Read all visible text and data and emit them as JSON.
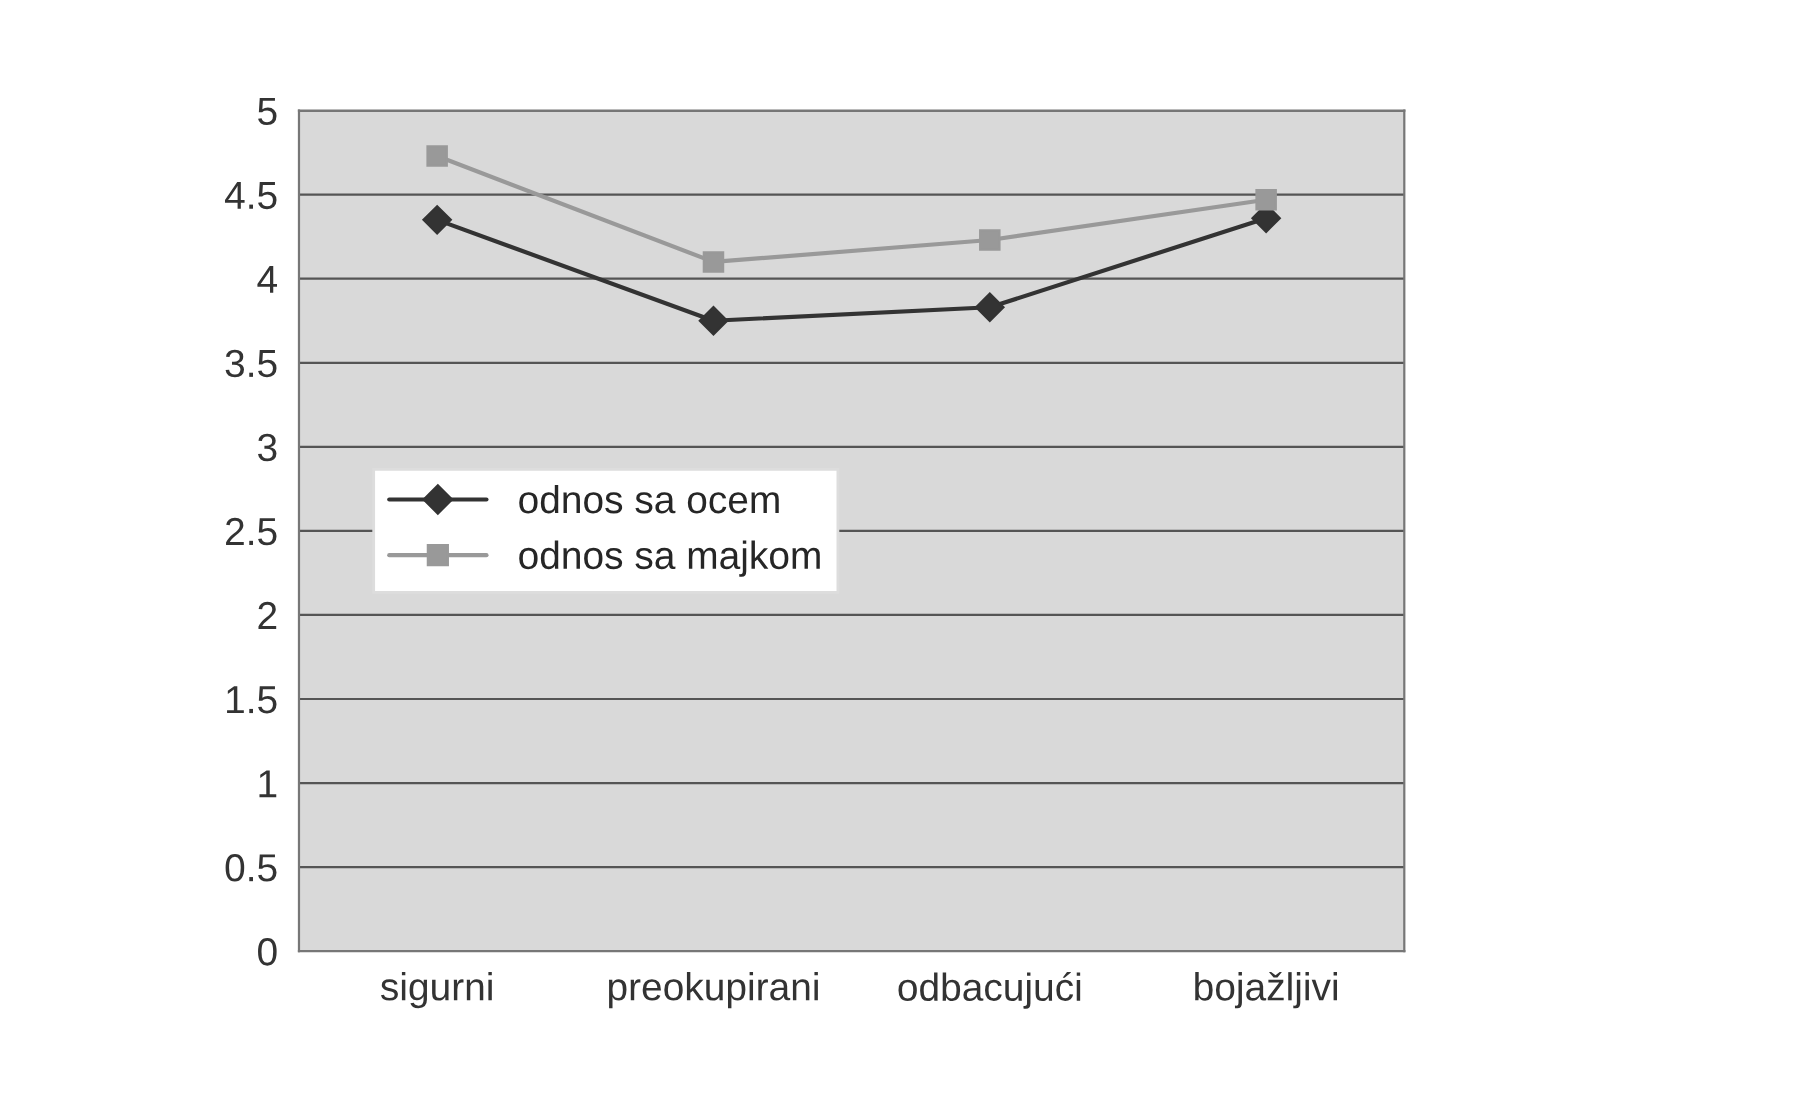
{
  "chart_data": {
    "type": "line",
    "categories": [
      "sigurni",
      "preokupirani",
      "odbacujući",
      "bojažljivi"
    ],
    "series": [
      {
        "name": "odnos sa ocem",
        "color": "#333333",
        "marker": "diamond",
        "values": [
          4.35,
          3.75,
          3.83,
          4.36
        ]
      },
      {
        "name": "odnos sa majkom",
        "color": "#999999",
        "marker": "square",
        "values": [
          4.73,
          4.1,
          4.23,
          4.47
        ]
      }
    ],
    "ylim": [
      0,
      5
    ],
    "yticks": [
      0,
      0.5,
      1,
      1.5,
      2,
      2.5,
      3,
      3.5,
      4,
      4.5,
      5
    ],
    "grid": "y",
    "legend": "left"
  }
}
